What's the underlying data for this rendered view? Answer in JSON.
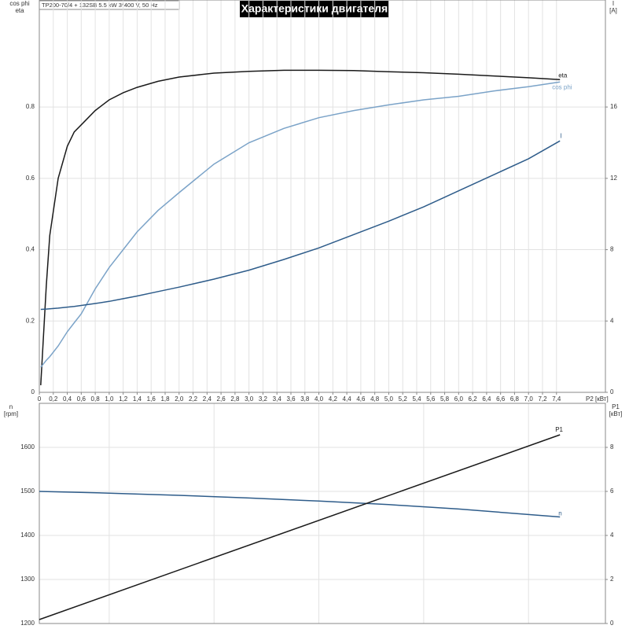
{
  "chart_data": [
    {
      "type": "line",
      "title": "Характеристики двигателя",
      "subtitle": "TP200-70/4 + 132SB   5.5 kW   3*400 V, 50 Hz",
      "xlabel": "P2 [кВт]",
      "ylabel": [
        "cos phi",
        "eta"
      ],
      "y2label": [
        "I",
        "[A]"
      ],
      "xlim": [
        0,
        8.1
      ],
      "xticks": [
        0,
        {
          "value": 0.2,
          "label": "0,2"
        },
        {
          "value": 0.4,
          "label": "0,4"
        },
        {
          "value": 0.6,
          "label": "0,6"
        },
        {
          "value": 0.8,
          "label": "0,8"
        },
        {
          "value": 1.0,
          "label": "1,0"
        },
        {
          "value": 1.2,
          "label": "1,2"
        },
        {
          "value": 1.4,
          "label": "1,4"
        },
        {
          "value": 1.6,
          "label": "1,6"
        },
        {
          "value": 1.8,
          "label": "1,8"
        },
        {
          "value": 2.0,
          "label": "2,0"
        },
        {
          "value": 2.2,
          "label": "2,2"
        },
        {
          "value": 2.4,
          "label": "2,4"
        },
        {
          "value": 2.6,
          "label": "2,6"
        },
        {
          "value": 2.8,
          "label": "2,8"
        },
        {
          "value": 3.0,
          "label": "3,0"
        },
        {
          "value": 3.2,
          "label": "3,2"
        },
        {
          "value": 3.4,
          "label": "3,4"
        },
        {
          "value": 3.6,
          "label": "3,6"
        },
        {
          "value": 3.8,
          "label": "3,8"
        },
        {
          "value": 4.0,
          "label": "4,0"
        },
        {
          "value": 4.2,
          "label": "4,2"
        },
        {
          "value": 4.4,
          "label": "4,4"
        },
        {
          "value": 4.6,
          "label": "4,6"
        },
        {
          "value": 4.8,
          "label": "4,8"
        },
        {
          "value": 5.0,
          "label": "5,0"
        },
        {
          "value": 5.2,
          "label": "5,2"
        },
        {
          "value": 5.4,
          "label": "5,4"
        },
        {
          "value": 5.6,
          "label": "5,6"
        },
        {
          "value": 5.8,
          "label": "5,8"
        },
        {
          "value": 6.0,
          "label": "6,0"
        },
        {
          "value": 6.2,
          "label": "6,2"
        },
        {
          "value": 6.4,
          "label": "6,4"
        },
        {
          "value": 6.6,
          "label": "6,6"
        },
        {
          "value": 6.8,
          "label": "6,8"
        },
        {
          "value": 7.0,
          "label": "7,0"
        },
        {
          "value": 7.2,
          "label": "7,2"
        },
        {
          "value": 7.4,
          "label": "7,4"
        }
      ],
      "ylim": [
        0,
        1.1
      ],
      "yticks": [
        0,
        0.2,
        0.4,
        0.6,
        0.8
      ],
      "y2lim": [
        0,
        22
      ],
      "y2ticks": [
        0,
        4,
        8,
        12,
        16
      ],
      "grid": true,
      "series": [
        {
          "name": "eta",
          "color": "#1a1a1a",
          "x": [
            0.02,
            0.1,
            0.15,
            0.27,
            0.4,
            0.5,
            0.6,
            0.8,
            1.0,
            1.2,
            1.4,
            1.7,
            2.0,
            2.5,
            3.0,
            3.5,
            4.0,
            4.5,
            5.0,
            5.5,
            6.0,
            6.5,
            7.0,
            7.45
          ],
          "values": [
            0.02,
            0.3,
            0.44,
            0.6,
            0.69,
            0.73,
            0.75,
            0.79,
            0.82,
            0.84,
            0.855,
            0.872,
            0.884,
            0.895,
            0.9,
            0.903,
            0.903,
            0.902,
            0.899,
            0.896,
            0.892,
            0.887,
            0.882,
            0.877
          ]
        },
        {
          "name": "cos phi",
          "color": "#7ba3c8",
          "x": [
            0.02,
            0.1,
            0.15,
            0.27,
            0.4,
            0.5,
            0.6,
            0.8,
            1.0,
            1.2,
            1.4,
            1.7,
            2.0,
            2.5,
            3.0,
            3.5,
            4.0,
            4.5,
            5.0,
            5.5,
            6.0,
            6.5,
            7.0,
            7.45
          ],
          "values": [
            0.07,
            0.09,
            0.1,
            0.13,
            0.17,
            0.195,
            0.22,
            0.29,
            0.35,
            0.4,
            0.45,
            0.51,
            0.56,
            0.64,
            0.7,
            0.74,
            0.77,
            0.79,
            0.806,
            0.82,
            0.83,
            0.845,
            0.857,
            0.87
          ]
        },
        {
          "name": "I",
          "color": "#2e5c8a",
          "axis": "y2",
          "x": [
            0.02,
            0.1,
            0.15,
            0.27,
            0.4,
            0.5,
            0.6,
            0.8,
            1.0,
            1.2,
            1.4,
            1.7,
            2.0,
            2.5,
            3.0,
            3.5,
            4.0,
            4.5,
            5.0,
            5.5,
            6.0,
            6.5,
            7.0,
            7.45
          ],
          "values": [
            4.65,
            4.67,
            4.68,
            4.72,
            4.78,
            4.82,
            4.87,
            4.98,
            5.1,
            5.25,
            5.4,
            5.65,
            5.9,
            6.35,
            6.85,
            7.45,
            8.1,
            8.85,
            9.6,
            10.4,
            11.3,
            12.2,
            13.1,
            14.1
          ]
        }
      ]
    },
    {
      "type": "line",
      "ylabel": [
        "n",
        "[rpm]"
      ],
      "y2label": [
        "P1",
        "[кВт]"
      ],
      "xlim": [
        0,
        8.1
      ],
      "xgrid": [
        1.0,
        2.5,
        4.0,
        5.5,
        7.0
      ],
      "ylim": [
        1200,
        1700
      ],
      "yticks": [
        1200,
        1300,
        1400,
        1500,
        1600
      ],
      "y2lim": [
        0,
        10
      ],
      "y2ticks": [
        0,
        2,
        4,
        6,
        8
      ],
      "grid": true,
      "series": [
        {
          "name": "n",
          "color": "#2e5c8a",
          "x": [
            0,
            1,
            2,
            3,
            4,
            5,
            6,
            7.45
          ],
          "values": [
            1500,
            1496,
            1491,
            1485,
            1478,
            1470,
            1460,
            1442
          ]
        },
        {
          "name": "P1",
          "color": "#1a1a1a",
          "axis": "y2",
          "x": [
            0,
            7.45
          ],
          "values": [
            0.18,
            8.57
          ]
        }
      ]
    }
  ]
}
